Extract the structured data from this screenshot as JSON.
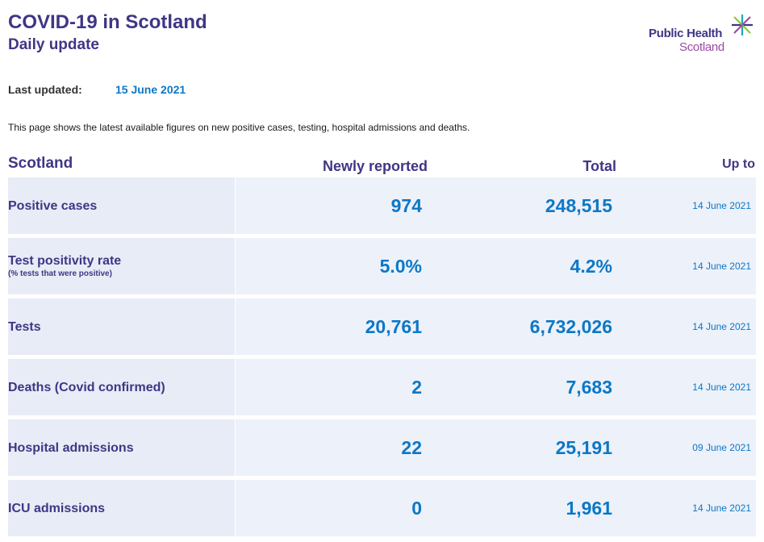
{
  "header": {
    "title": "COVID-19 in Scotland",
    "subtitle": "Daily update"
  },
  "logo": {
    "line1": "Public Health",
    "line2": "Scotland",
    "icon": "phs-star-icon",
    "colors": {
      "navy": "#3f3685",
      "purple": "#9b4aa6",
      "green": "#8dc63f",
      "teal": "#1fa9b6"
    }
  },
  "last_updated": {
    "label": "Last updated:",
    "value": "15 June 2021"
  },
  "intro": "This page shows the latest available figures on new positive cases, testing, hospital admissions and deaths.",
  "table": {
    "columns": {
      "region": "Scotland",
      "newly": "Newly reported",
      "total": "Total",
      "up_to": "Up to"
    },
    "rows": [
      {
        "label": "Positive cases",
        "sublabel": "",
        "newly": "974",
        "total": "248,515",
        "up_to": "14 June 2021"
      },
      {
        "label": "Test positivity rate",
        "sublabel": "(% tests that were positive)",
        "newly": "5.0%",
        "total": "4.2%",
        "up_to": "14 June 2021"
      },
      {
        "label": "Tests",
        "sublabel": "",
        "newly": "20,761",
        "total": "6,732,026",
        "up_to": "14 June 2021"
      },
      {
        "label": "Deaths (Covid confirmed)",
        "sublabel": "",
        "newly": "2",
        "total": "7,683",
        "up_to": "14 June 2021"
      },
      {
        "label": "Hospital admissions",
        "sublabel": "",
        "newly": "22",
        "total": "25,191",
        "up_to": "09 June 2021"
      },
      {
        "label": "ICU admissions",
        "sublabel": "",
        "newly": "0",
        "total": "1,961",
        "up_to": "14 June 2021"
      }
    ]
  },
  "colors": {
    "heading": "#3f3685",
    "value": "#0b78c7",
    "label_cell_bg": "#e8ecf6",
    "data_cell_bg": "#edf1f9"
  }
}
